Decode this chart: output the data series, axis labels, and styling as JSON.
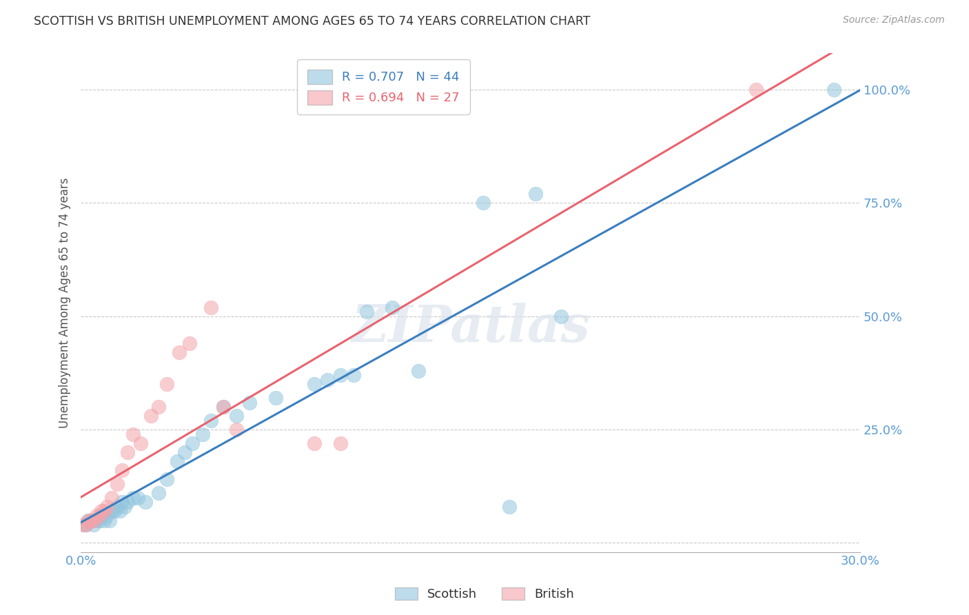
{
  "title": "SCOTTISH VS BRITISH UNEMPLOYMENT AMONG AGES 65 TO 74 YEARS CORRELATION CHART",
  "source": "Source: ZipAtlas.com",
  "ylabel": "Unemployment Among Ages 65 to 74 years",
  "xlim": [
    0.0,
    0.3
  ],
  "ylim": [
    -0.02,
    1.08
  ],
  "yticks": [
    0.0,
    0.25,
    0.5,
    0.75,
    1.0
  ],
  "ytick_labels": [
    "",
    "25.0%",
    "50.0%",
    "75.0%",
    "100.0%"
  ],
  "xticks": [
    0.0,
    0.05,
    0.1,
    0.15,
    0.2,
    0.25,
    0.3
  ],
  "xtick_labels": [
    "0.0%",
    "",
    "",
    "",
    "",
    "",
    "30.0%"
  ],
  "scottish_R": 0.707,
  "scottish_N": 44,
  "british_R": 0.694,
  "british_N": 27,
  "scottish_color": "#92c5de",
  "british_color": "#f4a4aa",
  "scottish_line_color": "#3a7ebf",
  "british_line_color": "#e8636e",
  "background_color": "#ffffff",
  "watermark": "ZIPatlas",
  "scottish_x": [
    0.001,
    0.002,
    0.003,
    0.004,
    0.005,
    0.006,
    0.007,
    0.008,
    0.009,
    0.01,
    0.011,
    0.012,
    0.013,
    0.014,
    0.015,
    0.016,
    0.017,
    0.018,
    0.02,
    0.022,
    0.025,
    0.03,
    0.033,
    0.037,
    0.04,
    0.043,
    0.047,
    0.05,
    0.055,
    0.06,
    0.065,
    0.075,
    0.09,
    0.095,
    0.1,
    0.105,
    0.11,
    0.12,
    0.13,
    0.155,
    0.165,
    0.175,
    0.185,
    0.29
  ],
  "scottish_y": [
    0.04,
    0.04,
    0.05,
    0.05,
    0.04,
    0.05,
    0.05,
    0.06,
    0.05,
    0.06,
    0.05,
    0.07,
    0.07,
    0.08,
    0.07,
    0.09,
    0.08,
    0.09,
    0.1,
    0.1,
    0.09,
    0.11,
    0.14,
    0.18,
    0.2,
    0.22,
    0.24,
    0.27,
    0.3,
    0.28,
    0.31,
    0.32,
    0.35,
    0.36,
    0.37,
    0.37,
    0.51,
    0.52,
    0.38,
    0.75,
    0.08,
    0.77,
    0.5,
    1.0
  ],
  "british_x": [
    0.001,
    0.002,
    0.003,
    0.004,
    0.005,
    0.006,
    0.007,
    0.008,
    0.009,
    0.01,
    0.012,
    0.014,
    0.016,
    0.018,
    0.02,
    0.023,
    0.027,
    0.03,
    0.033,
    0.038,
    0.042,
    0.05,
    0.055,
    0.06,
    0.09,
    0.1,
    0.26
  ],
  "british_y": [
    0.04,
    0.04,
    0.05,
    0.05,
    0.05,
    0.06,
    0.06,
    0.07,
    0.07,
    0.08,
    0.1,
    0.13,
    0.16,
    0.2,
    0.24,
    0.22,
    0.28,
    0.3,
    0.35,
    0.42,
    0.44,
    0.52,
    0.3,
    0.25,
    0.22,
    0.22,
    1.0
  ]
}
